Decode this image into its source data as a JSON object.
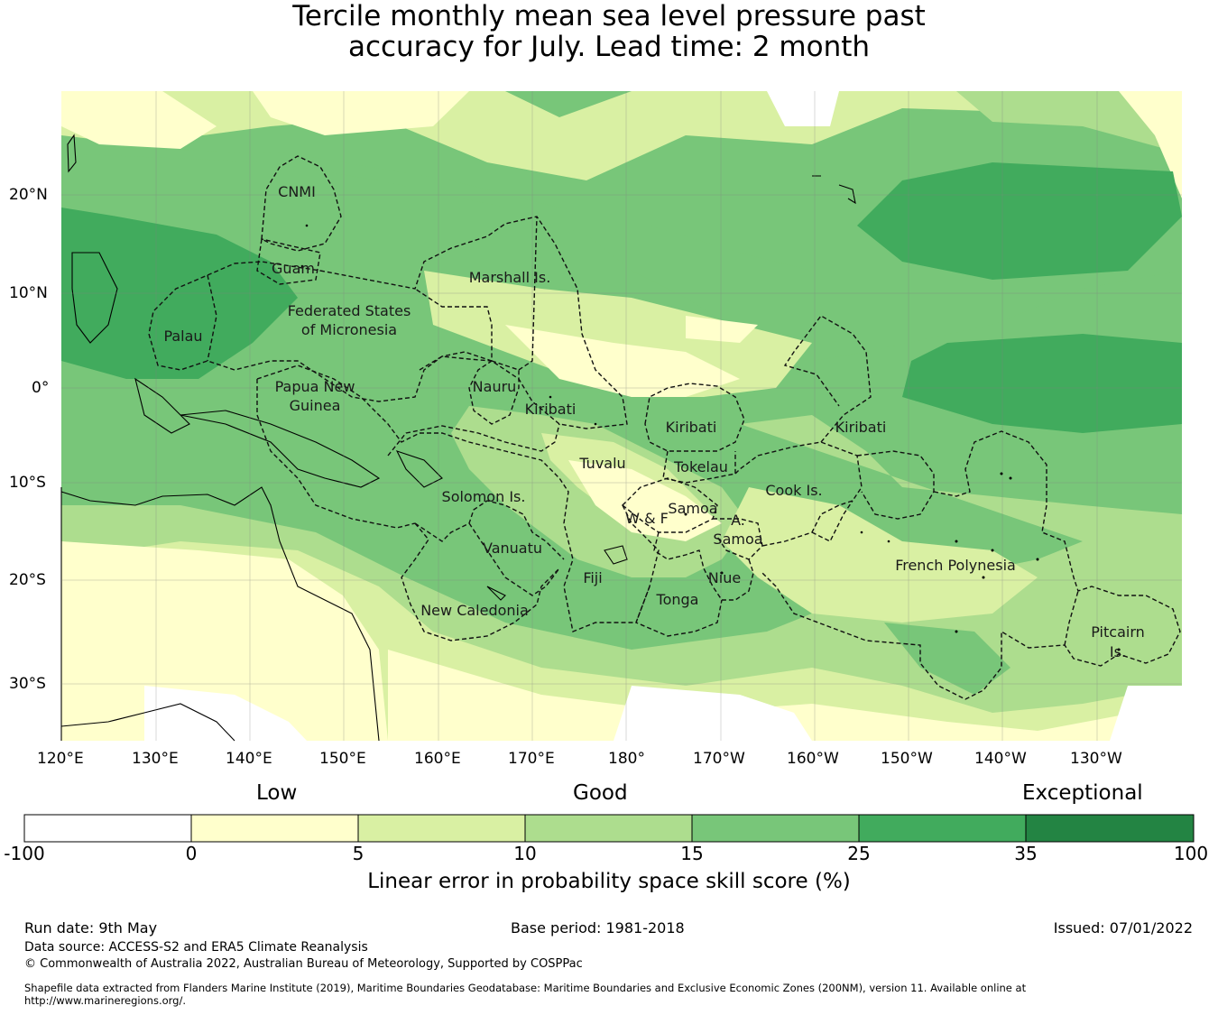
{
  "title": {
    "line1": "Tercile monthly mean sea level pressure past",
    "line2": "accuracy for July. Lead time: 2 month"
  },
  "map": {
    "lat_labels": [
      "20°N",
      "10°N",
      "0°",
      "10°S",
      "20°S",
      "30°S"
    ],
    "lon_labels": [
      "120°E",
      "130°E",
      "140°E",
      "150°E",
      "160°E",
      "170°E",
      "180°",
      "170°W",
      "160°W",
      "150°W",
      "140°W",
      "130°W"
    ],
    "regions": [
      "CNMI",
      "Guam",
      "Marshall Is.",
      "Federated States",
      "of Micronesia",
      "Palau",
      "Papua New",
      "Guinea",
      "Nauru",
      "Kiribati",
      "Kiribati",
      "Kiribati",
      "Tuvalu",
      "Tokelau",
      "Cook Is.",
      "Solomon Is.",
      "W & F",
      "Samoa",
      "A.",
      "Samoa",
      "Vanuatu",
      "Fiji",
      "Niue",
      "Tonga",
      "New Caledonia",
      "French Polynesia",
      "Pitcairn",
      "Is."
    ]
  },
  "colorbar": {
    "categories": [
      "Low",
      "Good",
      "Exceptional"
    ],
    "ticks": [
      "-100",
      "0",
      "5",
      "10",
      "15",
      "25",
      "35",
      "100"
    ],
    "colors": [
      "#ffffff",
      "#ffffcc",
      "#d9f0a3",
      "#addd8e",
      "#78c679",
      "#41ab5d",
      "#238443"
    ],
    "label": "Linear error in probability space skill score (%)"
  },
  "footer": {
    "run_date": "Run date: 9th May",
    "base_period": "Base period: 1981-2018",
    "issued": "Issued: 07/01/2022",
    "data_source": "Data source: ACCESS-S2 and ERA5 Climate Reanalysis",
    "copyright": "© Commonwealth of Australia 2022, Australian Bureau of Meteorology, Supported by COSPPac",
    "shapefile1": "Shapefile data extracted from Flanders Marine Institute (2019), Maritime Boundaries Geodatabase: Maritime Boundaries and Exclusive Economic Zones (200NM), version 11. Available online at",
    "shapefile2": "http://www.marineregions.org/."
  }
}
